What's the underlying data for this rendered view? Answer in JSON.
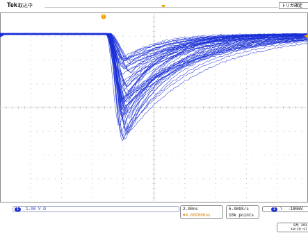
{
  "header": {
    "brand": "Tek",
    "acq_state": "取込中",
    "trigger_status": "トリガ確定"
  },
  "channel1": {
    "badge": "1",
    "scale": "1.00 V",
    "coupling_symbol": "Ω",
    "color": "#1a2fd6"
  },
  "timebase": {
    "per_div": "2.00ns",
    "position": "▼4.000000ns"
  },
  "acquisition": {
    "sample_rate": "5.00GS/s",
    "record_length": "10k points"
  },
  "trigger": {
    "source_badge": "1",
    "slope": "\\",
    "level": "-180mV"
  },
  "datetime": {
    "date": "9月 201",
    "time": "10:15:17"
  },
  "display": {
    "background": "#ffffff",
    "grid_color": "#b8b8b8",
    "trigger_marker_color": "#f0a000",
    "trace_color": "#1a2fd6"
  }
}
